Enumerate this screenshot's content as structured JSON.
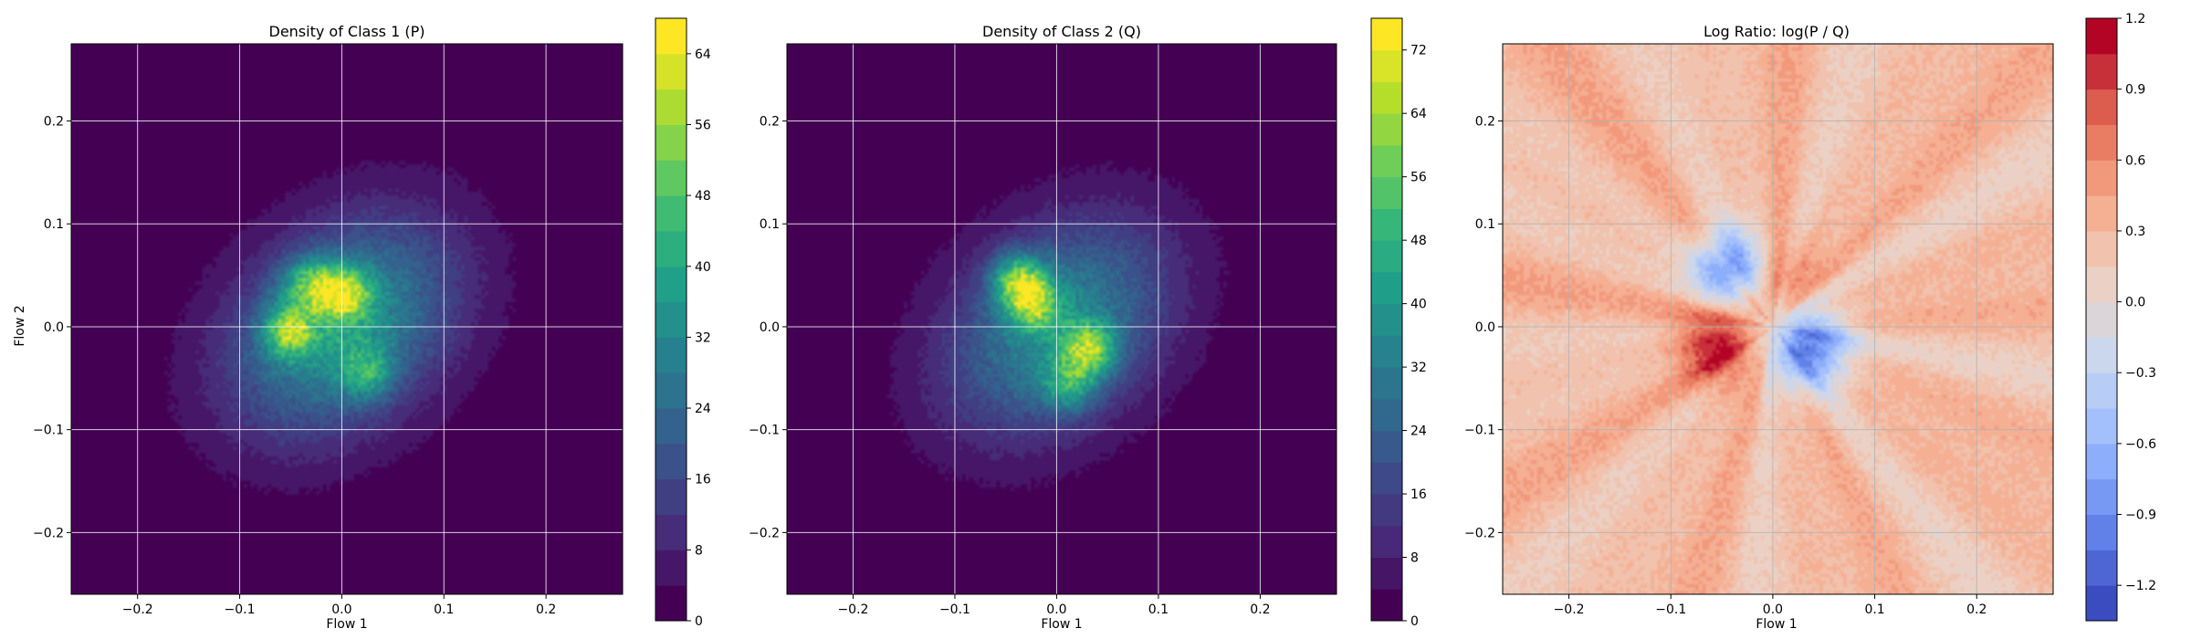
{
  "figure": {
    "background": "#ffffff",
    "grid_color": "#ffffff",
    "grid_color_ratio_panel": "#b0b0b0",
    "axis_color": "#000000"
  },
  "chart_data": [
    {
      "type": "heatmap",
      "style": "filled-contour",
      "title": "Density of Class 1 (P)",
      "xlabel": "Flow 1",
      "ylabel": "Flow 2",
      "xlim": [
        -0.265,
        0.275
      ],
      "ylim": [
        -0.26,
        0.275
      ],
      "xticks": [
        -0.2,
        -0.1,
        0.0,
        0.1,
        0.2
      ],
      "xtick_labels": [
        "−0.2",
        "−0.1",
        "0.0",
        "0.1",
        "0.2"
      ],
      "yticks": [
        -0.2,
        -0.1,
        0.0,
        0.1,
        0.2
      ],
      "ytick_labels": [
        "−0.2",
        "−0.1",
        "0.0",
        "0.1",
        "0.2"
      ],
      "grid": true,
      "colormap": "viridis",
      "colorbar": {
        "min": 0,
        "max": 68,
        "ticks": [
          0,
          8,
          16,
          24,
          32,
          40,
          48,
          56,
          64
        ],
        "tick_labels": [
          "0",
          "8",
          "16",
          "24",
          "32",
          "40",
          "48",
          "56",
          "64"
        ]
      },
      "peaks": [
        {
          "x": 0.002,
          "y": 0.032,
          "density": 64
        },
        {
          "x": -0.052,
          "y": -0.004,
          "density": 58
        },
        {
          "x": -0.032,
          "y": 0.042,
          "density": 46
        },
        {
          "x": 0.025,
          "y": -0.045,
          "density": 38
        }
      ],
      "background_value": 0
    },
    {
      "type": "heatmap",
      "style": "filled-contour",
      "title": "Density of Class 2 (Q)",
      "xlabel": "Flow 1",
      "ylabel": "",
      "xlim": [
        -0.265,
        0.275
      ],
      "ylim": [
        -0.26,
        0.275
      ],
      "xticks": [
        -0.2,
        -0.1,
        0.0,
        0.1,
        0.2
      ],
      "xtick_labels": [
        "−0.2",
        "−0.1",
        "0.0",
        "0.1",
        "0.2"
      ],
      "yticks": [
        -0.2,
        -0.1,
        0.0,
        0.1,
        0.2
      ],
      "ytick_labels": [
        "−0.2",
        "−0.1",
        "0.0",
        "0.1",
        "0.2"
      ],
      "grid": true,
      "colormap": "viridis",
      "colorbar": {
        "min": 0,
        "max": 76,
        "ticks": [
          0,
          8,
          16,
          24,
          32,
          40,
          48,
          56,
          64,
          72
        ],
        "tick_labels": [
          "0",
          "8",
          "16",
          "24",
          "32",
          "40",
          "48",
          "56",
          "64",
          "72"
        ]
      },
      "peaks": [
        {
          "x": -0.038,
          "y": 0.045,
          "density": 72
        },
        {
          "x": 0.032,
          "y": -0.022,
          "density": 70
        },
        {
          "x": -0.022,
          "y": 0.022,
          "density": 56
        },
        {
          "x": 0.012,
          "y": -0.058,
          "density": 44
        }
      ],
      "background_value": 0
    },
    {
      "type": "heatmap",
      "style": "filled-contour",
      "title": "Log Ratio: log(P / Q)",
      "xlabel": "Flow 1",
      "ylabel": "",
      "xlim": [
        -0.265,
        0.275
      ],
      "ylim": [
        -0.26,
        0.275
      ],
      "xticks": [
        -0.2,
        -0.1,
        0.0,
        0.1,
        0.2
      ],
      "xtick_labels": [
        "−0.2",
        "−0.1",
        "0.0",
        "0.1",
        "0.2"
      ],
      "yticks": [
        -0.2,
        -0.1,
        0.0,
        0.1,
        0.2
      ],
      "ytick_labels": [
        "−0.2",
        "−0.1",
        "0.0",
        "0.1",
        "0.2"
      ],
      "grid": true,
      "colormap": "coolwarm",
      "colorbar": {
        "min": -1.35,
        "max": 1.2,
        "ticks": [
          -1.2,
          -0.9,
          -0.6,
          -0.3,
          0.0,
          0.3,
          0.6,
          0.9,
          1.2
        ],
        "tick_labels": [
          "−1.2",
          "−0.9",
          "−0.6",
          "−0.3",
          "0.0",
          "0.3",
          "0.6",
          "0.9",
          "1.2"
        ]
      },
      "peaks": [
        {
          "x": -0.055,
          "y": -0.015,
          "value": 1.0
        },
        {
          "x": 0.005,
          "y": 0.045,
          "value": 0.7
        },
        {
          "x": -0.04,
          "y": 0.055,
          "value": -1.1
        },
        {
          "x": 0.035,
          "y": -0.02,
          "value": -1.2
        }
      ],
      "background_value": 0.3
    }
  ]
}
